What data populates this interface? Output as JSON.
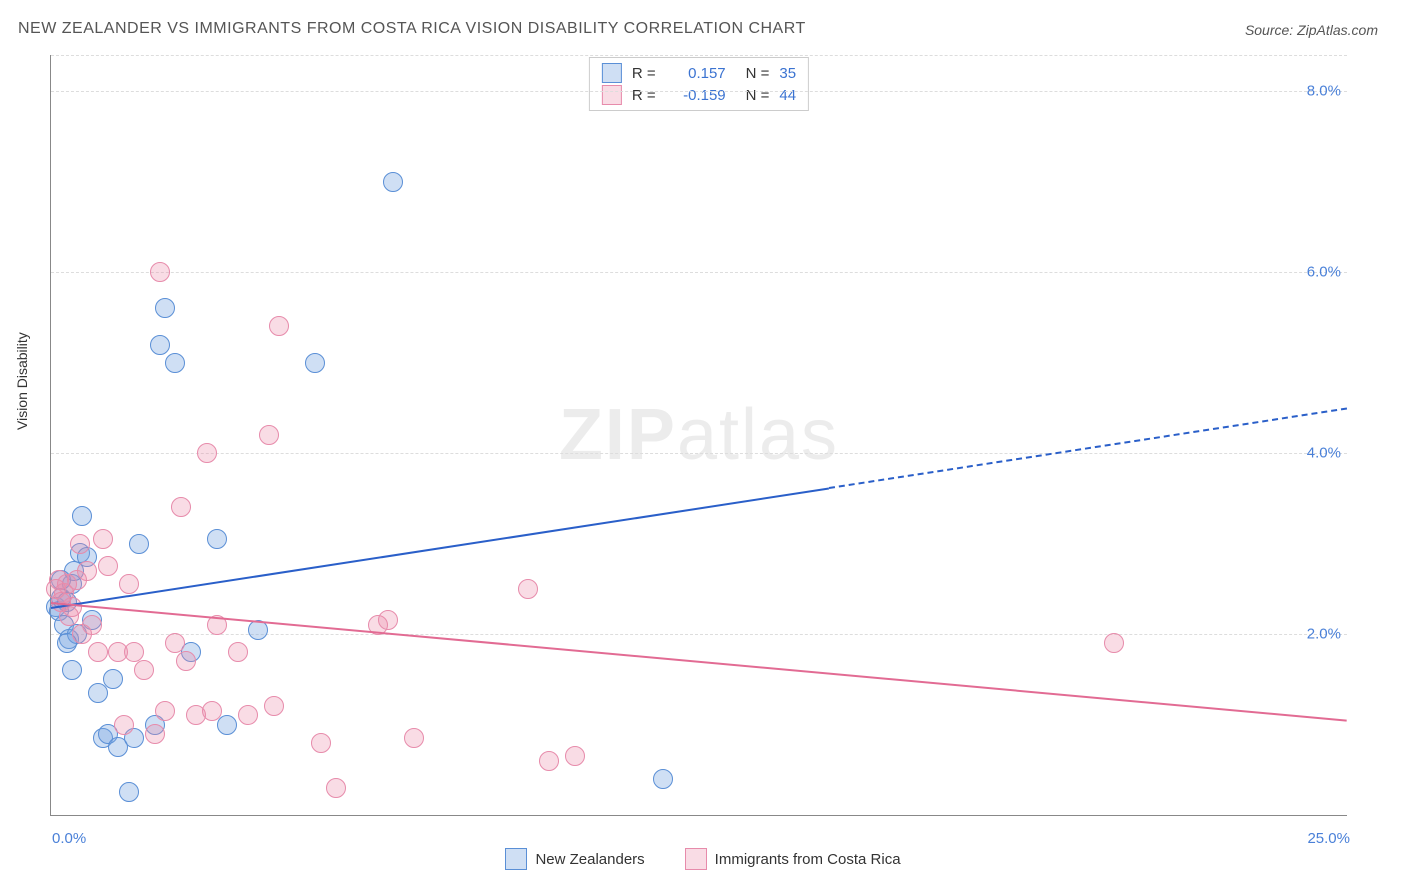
{
  "title": "NEW ZEALANDER VS IMMIGRANTS FROM COSTA RICA VISION DISABILITY CORRELATION CHART",
  "source_prefix": "Source: ",
  "source_name": "ZipAtlas.com",
  "watermark": {
    "zip": "ZIP",
    "atlas": "atlas"
  },
  "ylabel": "Vision Disability",
  "chart": {
    "type": "scatter",
    "xlim": [
      0,
      25
    ],
    "ylim": [
      0,
      8.4
    ],
    "x_start_label": "0.0%",
    "x_end_label": "25.0%",
    "y_ticks": [
      2.0,
      4.0,
      6.0,
      8.0
    ],
    "y_tick_labels": [
      "2.0%",
      "4.0%",
      "6.0%",
      "8.0%"
    ],
    "grid_color": "#dddddd",
    "background_color": "#ffffff",
    "series": [
      {
        "name": "New Zealanders",
        "fill_color": "rgba(118,164,224,0.35)",
        "stroke_color": "#5a8fd6",
        "marker_radius": 9,
        "R": "0.157",
        "N": "35",
        "trend": {
          "y_at_x0": 2.3,
          "y_at_x25": 4.5,
          "color": "#2a5fc9",
          "width": 2,
          "dash_after_x": 15
        },
        "points": [
          [
            0.1,
            2.3
          ],
          [
            0.15,
            2.25
          ],
          [
            0.2,
            2.4
          ],
          [
            0.25,
            2.1
          ],
          [
            0.3,
            2.35
          ],
          [
            0.35,
            1.95
          ],
          [
            0.4,
            2.55
          ],
          [
            0.45,
            2.7
          ],
          [
            0.5,
            2.0
          ],
          [
            0.55,
            2.9
          ],
          [
            0.6,
            3.3
          ],
          [
            0.7,
            2.85
          ],
          [
            0.8,
            2.15
          ],
          [
            0.9,
            1.35
          ],
          [
            1.0,
            0.85
          ],
          [
            1.1,
            0.9
          ],
          [
            1.2,
            1.5
          ],
          [
            1.3,
            0.75
          ],
          [
            1.5,
            0.25
          ],
          [
            1.6,
            0.85
          ],
          [
            1.7,
            3.0
          ],
          [
            2.0,
            1.0
          ],
          [
            2.1,
            5.2
          ],
          [
            2.2,
            5.6
          ],
          [
            2.4,
            5.0
          ],
          [
            2.7,
            1.8
          ],
          [
            3.2,
            3.05
          ],
          [
            3.4,
            1.0
          ],
          [
            5.1,
            5.0
          ],
          [
            6.6,
            7.0
          ],
          [
            4.0,
            2.05
          ],
          [
            11.8,
            0.4
          ],
          [
            0.3,
            1.9
          ],
          [
            0.4,
            1.6
          ],
          [
            0.2,
            2.6
          ]
        ]
      },
      {
        "name": "Immigrants from Costa Rica",
        "fill_color": "rgba(235,140,170,0.30)",
        "stroke_color": "#e78bab",
        "marker_radius": 9,
        "R": "-0.159",
        "N": "44",
        "trend": {
          "y_at_x0": 2.35,
          "y_at_x25": 1.05,
          "color": "#e26b93",
          "width": 2,
          "dash_after_x": 25
        },
        "points": [
          [
            0.1,
            2.5
          ],
          [
            0.15,
            2.6
          ],
          [
            0.2,
            2.35
          ],
          [
            0.25,
            2.45
          ],
          [
            0.3,
            2.55
          ],
          [
            0.35,
            2.2
          ],
          [
            0.4,
            2.3
          ],
          [
            0.5,
            2.6
          ],
          [
            0.55,
            3.0
          ],
          [
            0.6,
            2.0
          ],
          [
            0.7,
            2.7
          ],
          [
            0.8,
            2.1
          ],
          [
            0.9,
            1.8
          ],
          [
            1.0,
            3.05
          ],
          [
            1.1,
            2.75
          ],
          [
            1.3,
            1.8
          ],
          [
            1.4,
            1.0
          ],
          [
            1.5,
            2.55
          ],
          [
            1.6,
            1.8
          ],
          [
            1.8,
            1.6
          ],
          [
            2.0,
            0.9
          ],
          [
            2.1,
            6.0
          ],
          [
            2.2,
            1.15
          ],
          [
            2.4,
            1.9
          ],
          [
            2.5,
            3.4
          ],
          [
            2.6,
            1.7
          ],
          [
            2.8,
            1.1
          ],
          [
            3.0,
            4.0
          ],
          [
            3.1,
            1.15
          ],
          [
            3.2,
            2.1
          ],
          [
            3.6,
            1.8
          ],
          [
            3.8,
            1.1
          ],
          [
            4.2,
            4.2
          ],
          [
            4.3,
            1.2
          ],
          [
            4.4,
            5.4
          ],
          [
            5.2,
            0.8
          ],
          [
            5.5,
            0.3
          ],
          [
            6.3,
            2.1
          ],
          [
            6.5,
            2.15
          ],
          [
            7.0,
            0.85
          ],
          [
            9.2,
            2.5
          ],
          [
            9.6,
            0.6
          ],
          [
            10.1,
            0.65
          ],
          [
            20.5,
            1.9
          ]
        ]
      }
    ]
  },
  "legend": [
    {
      "label": "New Zealanders",
      "fill": "rgba(118,164,224,0.35)",
      "stroke": "#5a8fd6"
    },
    {
      "label": "Immigrants from Costa Rica",
      "fill": "rgba(235,140,170,0.30)",
      "stroke": "#e78bab"
    }
  ],
  "stats_labels": {
    "R": "R  =",
    "N": "N  ="
  }
}
